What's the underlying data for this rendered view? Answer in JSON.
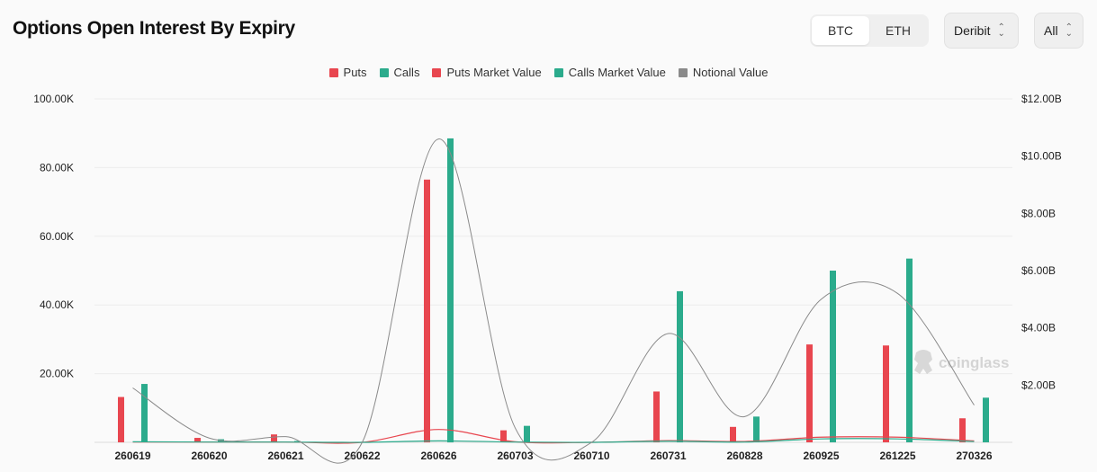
{
  "header": {
    "title": "Options Open Interest By Expiry",
    "currency_tabs": [
      {
        "label": "BTC",
        "active": true
      },
      {
        "label": "ETH",
        "active": false
      }
    ],
    "exchange_select": "Deribit",
    "filter_select": "All"
  },
  "colors": {
    "puts": "#e8464f",
    "calls": "#2bab8c",
    "notional": "#8a8a8a",
    "grid": "#ececec"
  },
  "watermark": "coinglass",
  "chart_data": {
    "type": "bar",
    "categories": [
      "260619",
      "260620",
      "260621",
      "260622",
      "260626",
      "260703",
      "260710",
      "260731",
      "260828",
      "260925",
      "261225",
      "270326"
    ],
    "series": [
      {
        "name": "Puts",
        "axis": "left",
        "kind": "bar",
        "values": [
          13200,
          1300,
          2300,
          0,
          76500,
          3500,
          0,
          14800,
          4500,
          28500,
          28200,
          7000
        ]
      },
      {
        "name": "Calls",
        "axis": "left",
        "kind": "bar",
        "values": [
          17000,
          900,
          400,
          0,
          88500,
          4800,
          0,
          44000,
          7500,
          50000,
          53500,
          13000
        ]
      },
      {
        "name": "Puts Market Value",
        "axis": "right",
        "kind": "line",
        "values": [
          0.01,
          0.01,
          0.01,
          0,
          0.45,
          0.02,
          0,
          0.06,
          0.03,
          0.18,
          0.18,
          0.05
        ]
      },
      {
        "name": "Calls Market Value",
        "axis": "right",
        "kind": "line",
        "values": [
          0.02,
          0.01,
          0.01,
          0,
          0.05,
          0.01,
          0,
          0.04,
          0.01,
          0.12,
          0.12,
          0.03
        ]
      },
      {
        "name": "Notional Value",
        "axis": "right",
        "kind": "line",
        "values": [
          1.9,
          0.15,
          0.2,
          0.0,
          10.6,
          0.5,
          0.0,
          3.8,
          0.9,
          5.0,
          5.2,
          1.3
        ]
      }
    ],
    "y_left": {
      "min": 0,
      "max": 100000,
      "ticks": [
        {
          "v": 20000,
          "label": "20.00K"
        },
        {
          "v": 40000,
          "label": "40.00K"
        },
        {
          "v": 60000,
          "label": "60.00K"
        },
        {
          "v": 80000,
          "label": "80.00K"
        },
        {
          "v": 100000,
          "label": "100.00K"
        }
      ]
    },
    "y_right": {
      "min": 0,
      "max": 12,
      "ticks": [
        {
          "v": 2,
          "label": "$2.00B"
        },
        {
          "v": 4,
          "label": "$4.00B"
        },
        {
          "v": 6,
          "label": "$6.00B"
        },
        {
          "v": 8,
          "label": "$8.00B"
        },
        {
          "v": 10,
          "label": "$10.00B"
        },
        {
          "v": 12,
          "label": "$12.00B"
        }
      ]
    },
    "legend_position": "top-center",
    "grid": true
  }
}
